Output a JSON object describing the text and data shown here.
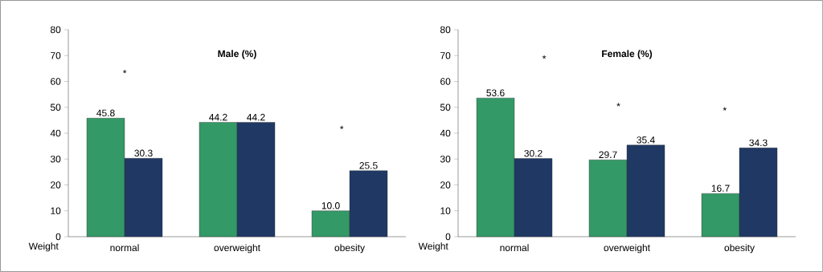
{
  "chart_data": [
    {
      "type": "bar",
      "title": "Male (%)",
      "xlabel": "Weight",
      "categories": [
        "normal",
        "overweight",
        "obesity"
      ],
      "series": [
        {
          "color": "#339966",
          "values": [
            45.8,
            44.2,
            10.0
          ],
          "value_labels": [
            "45.8",
            "44.2",
            "10.0"
          ]
        },
        {
          "color": "#1f3864",
          "values": [
            30.3,
            44.2,
            25.5
          ],
          "value_labels": [
            "30.3",
            "44.2",
            "25.5"
          ]
        }
      ],
      "ylim": [
        0,
        80
      ],
      "yticks": [
        0,
        10,
        20,
        30,
        40,
        50,
        60,
        70,
        80
      ],
      "annotations": [
        "*",
        "*"
      ]
    },
    {
      "type": "bar",
      "title": "Female (%)",
      "xlabel": "Weight",
      "categories": [
        "normal",
        "overweight",
        "obesity"
      ],
      "series": [
        {
          "color": "#339966",
          "values": [
            53.6,
            29.7,
            16.7
          ],
          "value_labels": [
            "53.6",
            "29.7",
            "16.7"
          ]
        },
        {
          "color": "#1f3864",
          "values": [
            30.2,
            35.4,
            34.3
          ],
          "value_labels": [
            "30.2",
            "35.4",
            "34.3"
          ]
        }
      ],
      "ylim": [
        0,
        80
      ],
      "yticks": [
        0,
        10,
        20,
        30,
        40,
        50,
        60,
        70,
        80
      ],
      "annotations": [
        "*",
        "*",
        "*"
      ]
    }
  ]
}
